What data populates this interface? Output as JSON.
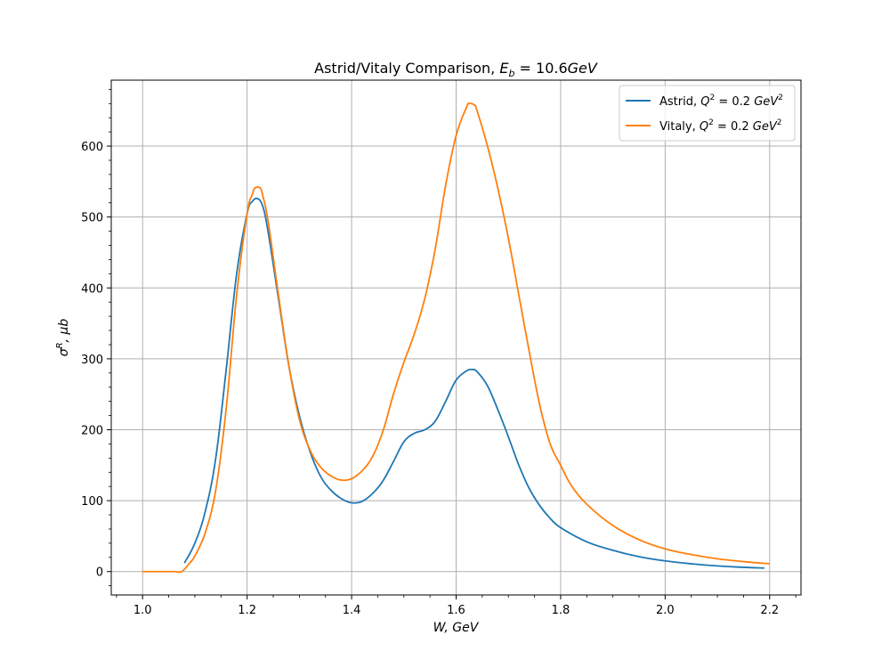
{
  "chart_data": {
    "type": "line",
    "title": {
      "prefix": "Astrid/Vitaly Comparison, ",
      "math_var": "E",
      "math_sub": "b",
      "math_rest": " = 10.6",
      "math_unit": "GeV"
    },
    "xlabel": "W, GeV",
    "ylabel": {
      "sym": "σ",
      "sup": "R",
      "rest": ", μb"
    },
    "xlim": [
      0.94,
      2.26
    ],
    "ylim": [
      -33,
      693
    ],
    "xticks": [
      1.0,
      1.2,
      1.4,
      1.6,
      1.8,
      2.0,
      2.2
    ],
    "xtick_labels": [
      "1.0",
      "1.2",
      "1.4",
      "1.6",
      "1.8",
      "2.0",
      "2.2"
    ],
    "yticks": [
      0,
      100,
      200,
      300,
      400,
      500,
      600
    ],
    "ytick_labels": [
      "0",
      "100",
      "200",
      "300",
      "400",
      "500",
      "600"
    ],
    "grid": true,
    "legend_position": "top-right",
    "series": [
      {
        "name": "Astrid, Q² = 0.2 GeV²",
        "legend": {
          "prefix": "Astrid, ",
          "q": "Q",
          "qsup": "2",
          "mid": " = 0.2 ",
          "unit": "GeV",
          "usup": "2"
        },
        "color": "#1f77b4",
        "x": [
          1.08,
          1.1,
          1.12,
          1.14,
          1.16,
          1.18,
          1.2,
          1.21,
          1.22,
          1.23,
          1.24,
          1.26,
          1.28,
          1.3,
          1.32,
          1.34,
          1.36,
          1.38,
          1.4,
          1.42,
          1.44,
          1.46,
          1.48,
          1.5,
          1.52,
          1.54,
          1.56,
          1.58,
          1.6,
          1.62,
          1.63,
          1.64,
          1.66,
          1.68,
          1.7,
          1.72,
          1.74,
          1.76,
          1.78,
          1.8,
          1.85,
          1.9,
          1.95,
          2.0,
          2.05,
          2.1,
          2.15,
          2.19
        ],
        "y": [
          12,
          40,
          85,
          160,
          285,
          420,
          505,
          522,
          526,
          515,
          480,
          385,
          290,
          220,
          170,
          135,
          115,
          103,
          97,
          99,
          110,
          128,
          155,
          183,
          195,
          200,
          212,
          240,
          270,
          283,
          285,
          282,
          262,
          228,
          190,
          150,
          117,
          93,
          75,
          62,
          42,
          30,
          21,
          15,
          11,
          8,
          6,
          5
        ]
      },
      {
        "name": "Vitaly, Q² = 0.2 GeV²",
        "legend": {
          "prefix": "Vitaly, ",
          "q": "Q",
          "qsup": "2",
          "mid": " = 0.2 ",
          "unit": "GeV",
          "usup": "2"
        },
        "color": "#ff7f0e",
        "x": [
          1.0,
          1.02,
          1.04,
          1.06,
          1.075,
          1.09,
          1.1,
          1.12,
          1.14,
          1.16,
          1.18,
          1.2,
          1.21,
          1.215,
          1.225,
          1.23,
          1.24,
          1.26,
          1.28,
          1.3,
          1.32,
          1.34,
          1.36,
          1.38,
          1.4,
          1.42,
          1.44,
          1.46,
          1.48,
          1.5,
          1.52,
          1.54,
          1.56,
          1.58,
          1.6,
          1.62,
          1.625,
          1.635,
          1.64,
          1.66,
          1.68,
          1.7,
          1.72,
          1.74,
          1.76,
          1.78,
          1.8,
          1.82,
          1.85,
          1.9,
          1.95,
          2.0,
          2.05,
          2.1,
          2.15,
          2.2
        ],
        "y": [
          0,
          0,
          0,
          0,
          0,
          12,
          22,
          55,
          115,
          230,
          390,
          505,
          532,
          541,
          541,
          530,
          495,
          390,
          290,
          215,
          172,
          148,
          135,
          129,
          131,
          142,
          162,
          198,
          250,
          295,
          335,
          385,
          455,
          545,
          615,
          655,
          660,
          658,
          650,
          600,
          540,
          470,
          390,
          310,
          235,
          180,
          150,
          122,
          95,
          65,
          45,
          32,
          24,
          18,
          14,
          11
        ]
      }
    ]
  }
}
